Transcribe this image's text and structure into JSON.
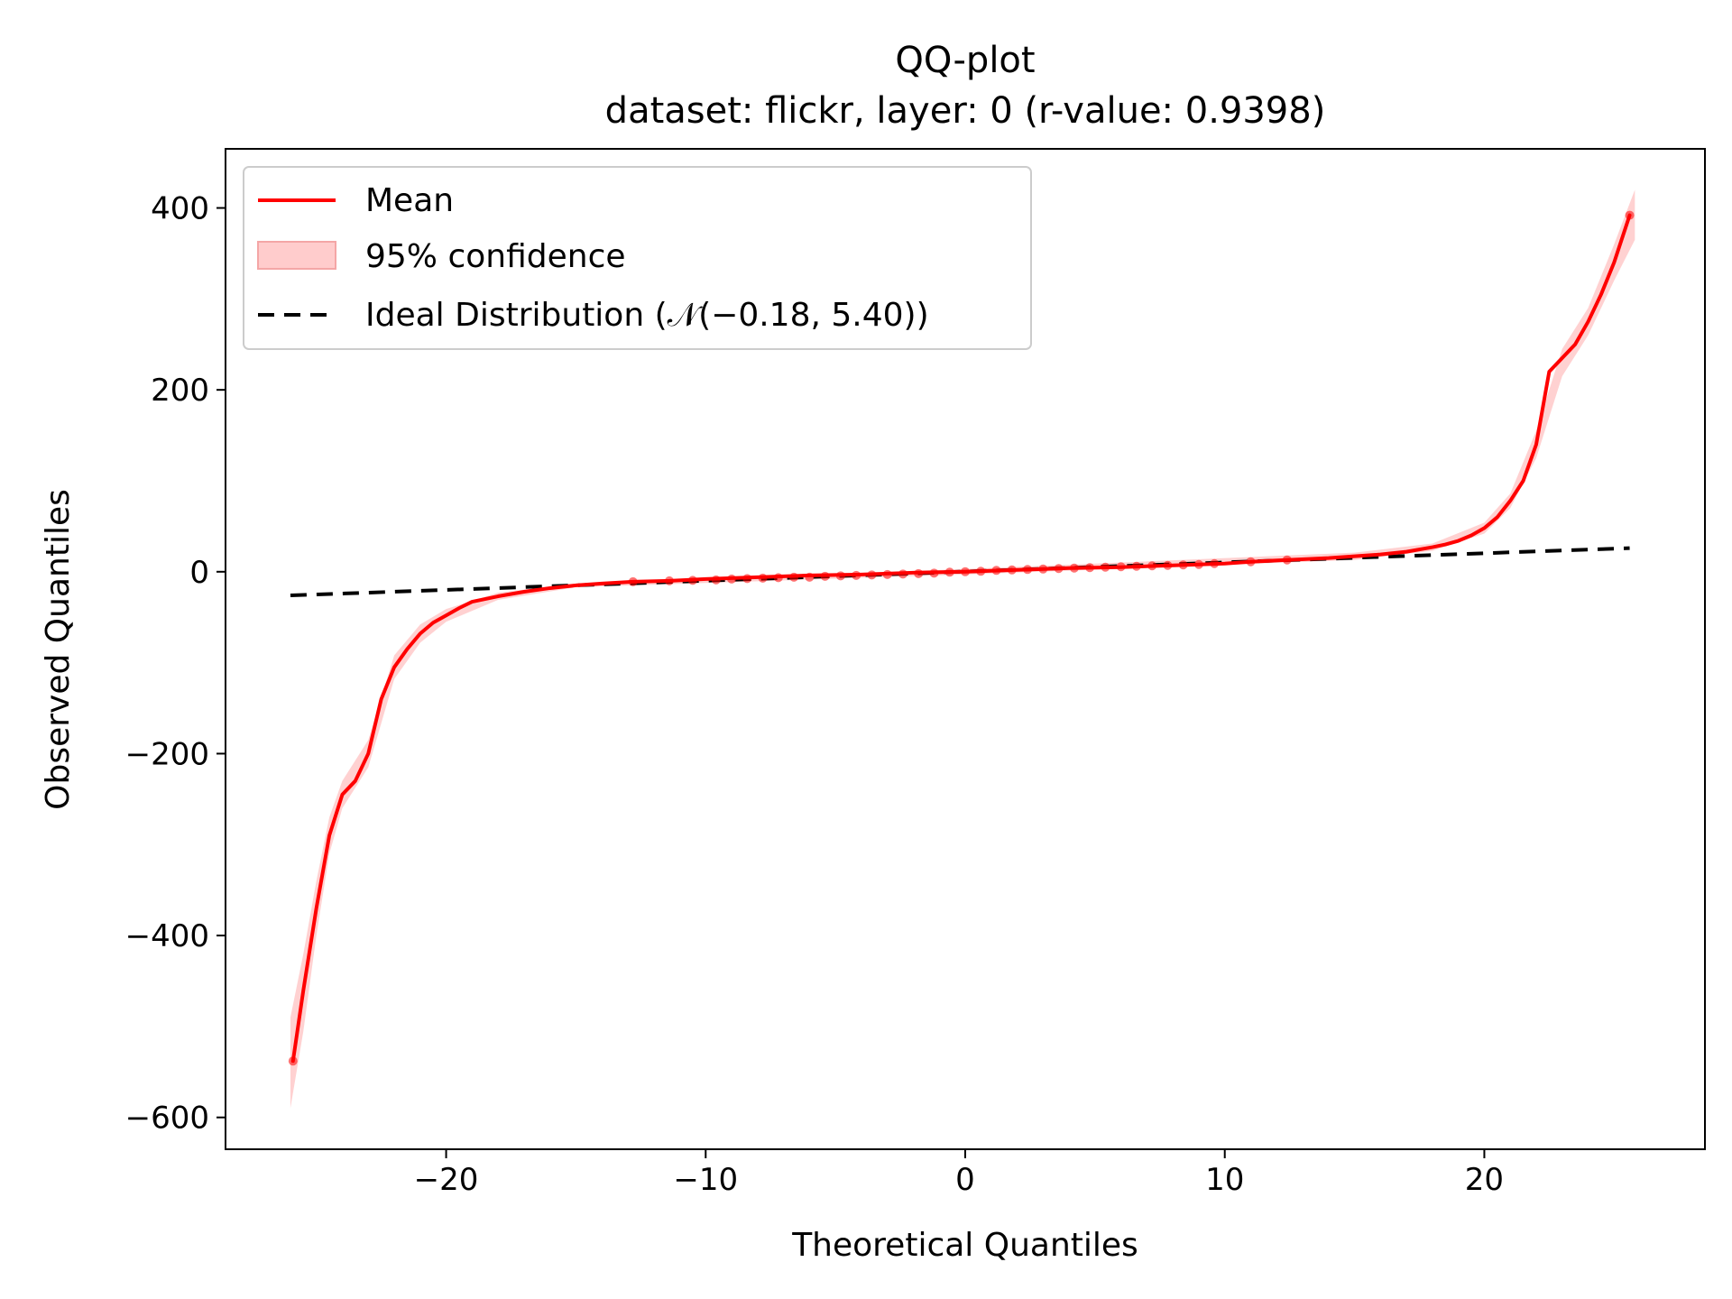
{
  "chart_data": {
    "type": "line",
    "title": "QQ-plot",
    "subtitle": "dataset: flickr, layer: 0 (r-value: 0.9398)",
    "xlabel": "Theoretical Quantiles",
    "ylabel": "Observed Quantiles",
    "xlim": [
      -28.5,
      28.5
    ],
    "ylim": [
      -635,
      465
    ],
    "xticks": [
      -20,
      -10,
      0,
      10,
      20
    ],
    "xtick_labels": [
      "−20",
      "−10",
      "0",
      "10",
      "20"
    ],
    "yticks": [
      400,
      200,
      0,
      -200,
      -400,
      -600
    ],
    "ytick_labels": [
      "400",
      "200",
      "0",
      "−200",
      "−400",
      "−600"
    ],
    "grid": false,
    "legend_position": "top-left",
    "colors": {
      "mean": "#ff0000",
      "confidence": "#ffb3b3",
      "ideal": "#000000"
    },
    "series": [
      {
        "name": "Mean",
        "style": "solid",
        "x": [
          -25.9,
          -25.5,
          -25.0,
          -24.5,
          -24.0,
          -23.5,
          -23.0,
          -22.5,
          -22.0,
          -21.5,
          -21.0,
          -20.5,
          -20.0,
          -19.5,
          -19.0,
          -18.0,
          -17.0,
          -16.0,
          -15.0,
          -14.0,
          -12.8,
          -11.4,
          -10.0,
          -8.0,
          -6.0,
          -4.0,
          -2.0,
          0.0,
          2.0,
          4.0,
          6.0,
          8.0,
          10.0,
          11.0,
          12.4,
          14.0,
          15.0,
          16.0,
          17.0,
          18.0,
          18.5,
          19.0,
          19.5,
          20.0,
          20.5,
          21.0,
          21.5,
          22.0,
          22.5,
          23.0,
          23.5,
          24.0,
          24.5,
          25.0,
          25.6
        ],
        "y": [
          -538,
          -460,
          -370,
          -290,
          -245,
          -230,
          -200,
          -140,
          -105,
          -85,
          -68,
          -56,
          -48,
          -40,
          -33,
          -27,
          -22,
          -18,
          -15,
          -13,
          -11,
          -10,
          -8,
          -6,
          -4,
          -3,
          -1,
          0,
          2,
          4,
          5,
          7,
          9,
          11,
          13,
          15,
          17,
          19,
          22,
          27,
          30,
          34,
          40,
          48,
          60,
          78,
          100,
          140,
          220,
          235,
          250,
          275,
          305,
          340,
          392
        ]
      },
      {
        "name": "95% confidence",
        "style": "band",
        "x": [
          -26.0,
          -25.5,
          -25.0,
          -24.5,
          -24.0,
          -23.0,
          -22.0,
          -21.0,
          -20.0,
          -18.0,
          -15.0,
          0.0,
          15.0,
          18.0,
          20.0,
          21.0,
          22.0,
          23.0,
          24.0,
          25.0,
          25.8
        ],
        "lower": [
          -590,
          -505,
          -400,
          -310,
          -260,
          -215,
          -118,
          -78,
          -55,
          -31,
          -17,
          -3,
          13,
          23,
          42,
          70,
          125,
          215,
          260,
          320,
          365
        ],
        "upper": [
          -490,
          -420,
          -340,
          -270,
          -230,
          -185,
          -92,
          -58,
          -41,
          -23,
          -13,
          3,
          21,
          31,
          54,
          86,
          155,
          245,
          290,
          360,
          420
        ]
      },
      {
        "name": "Ideal Distribution (𝒩(−0.18, 5.40))",
        "style": "dashed",
        "x": [
          -26,
          25.6
        ],
        "y": [
          -26,
          26
        ]
      }
    ],
    "highlight_points": {
      "x": [
        -25.9,
        -12.8,
        -11.4,
        -10.5,
        -9.6,
        -9.0,
        -8.4,
        -7.8,
        -7.2,
        -6.6,
        -6.0,
        -5.4,
        -4.8,
        -4.2,
        -3.6,
        -3.0,
        -2.4,
        -1.8,
        -1.2,
        -0.6,
        0.0,
        0.6,
        1.2,
        1.8,
        2.4,
        3.0,
        3.6,
        4.2,
        4.8,
        5.4,
        6.0,
        6.6,
        7.2,
        7.8,
        8.4,
        9.0,
        9.6,
        11.0,
        12.4,
        25.6
      ],
      "y": [
        -538,
        -11,
        -10,
        -9.5,
        -9,
        -8,
        -7.5,
        -7,
        -6.5,
        -6,
        -6,
        -5,
        -4.5,
        -4,
        -3.5,
        -3,
        -2.5,
        -2,
        -1.5,
        -0.5,
        0,
        0.5,
        1.5,
        2,
        2.5,
        3,
        3.5,
        4,
        4.5,
        5,
        5.5,
        6,
        6.5,
        7,
        7.5,
        8,
        9,
        11,
        13,
        392
      ]
    }
  }
}
